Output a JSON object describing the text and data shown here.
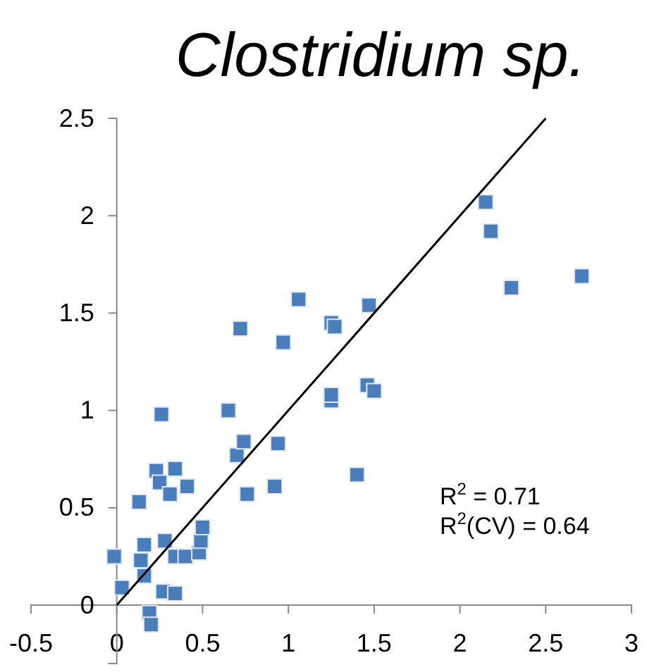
{
  "chart_data": {
    "type": "scatter",
    "title": "Clostridium sp.",
    "xlim": [
      -0.5,
      3
    ],
    "xticks": [
      -0.5,
      0,
      0.5,
      1,
      1.5,
      2,
      2.5,
      3
    ],
    "ylim": [
      -0.3,
      2.5
    ],
    "yticks": [
      0,
      0.5,
      1,
      1.5,
      2,
      2.5
    ],
    "grid": false,
    "marker": "square",
    "annotations": [
      "R$^{2}$ = 0.71",
      "R$^{2}$(CV) = 0.64"
    ],
    "series": [
      {
        "color": "#4a7ebb",
        "x": [
          -0.015,
          0.03,
          0.13,
          0.16,
          0.14,
          0.16,
          0.19,
          0.2,
          0.23,
          0.25,
          0.26,
          0.28,
          0.27,
          0.31,
          0.34,
          0.34,
          0.34,
          0.4,
          0.41,
          0.48,
          0.49,
          0.5,
          0.65,
          0.7,
          0.74,
          0.76,
          0.92,
          0.94,
          1.25,
          1.25,
          2.15,
          2.18,
          2.3,
          2.71,
          1.06,
          1.47,
          0.72,
          1.25,
          1.27,
          0.97,
          1.46,
          1.5,
          1.4
        ],
        "values": [
          0.25,
          0.09,
          0.53,
          0.31,
          0.23,
          0.15,
          -0.04,
          -0.1,
          0.69,
          0.63,
          0.98,
          0.33,
          0.07,
          0.57,
          0.7,
          0.06,
          0.25,
          0.25,
          0.61,
          0.27,
          0.33,
          0.4,
          1.0,
          0.77,
          0.84,
          0.57,
          0.61,
          0.83,
          1.05,
          1.08,
          2.07,
          1.92,
          1.63,
          1.69,
          1.57,
          1.54,
          1.42,
          1.45,
          1.43,
          1.35,
          1.13,
          1.1,
          0.67
        ]
      },
      {
        "type": "line",
        "color": "#000000",
        "line_style": "solid",
        "marker": "none",
        "x": [
          0,
          2.5
        ],
        "values": [
          0,
          2.5
        ]
      }
    ]
  }
}
